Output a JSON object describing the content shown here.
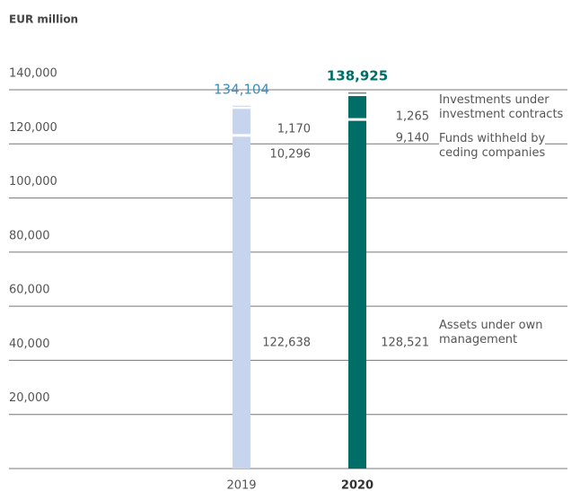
{
  "chart_data": {
    "type": "stacked_bar",
    "y_axis_label": "EUR million",
    "categories": [
      "2019",
      "2020"
    ],
    "category_colors": [
      "#c6d4ee",
      "#006e68"
    ],
    "total_colors": [
      "#3a90c2",
      "#006e68"
    ],
    "totals": [
      134104,
      138925
    ],
    "total_labels": [
      "134,104",
      "138,925"
    ],
    "series": [
      {
        "name": "Assets under own management",
        "values": [
          122638,
          128521
        ],
        "value_labels": [
          "122,638",
          "128,521"
        ]
      },
      {
        "name": "Funds withheld by ceding companies",
        "values": [
          10296,
          9140
        ],
        "value_labels": [
          "10,296",
          "9,140"
        ]
      },
      {
        "name": "Investments under investment contracts",
        "values": [
          1170,
          1265
        ],
        "value_labels": [
          "1,170",
          "1,265"
        ]
      }
    ],
    "ylim": [
      0,
      140000
    ],
    "yticks": [
      {
        "value": 20000,
        "label": "20,000"
      },
      {
        "value": 40000,
        "label": "40,000"
      },
      {
        "value": 60000,
        "label": "60,000"
      },
      {
        "value": 80000,
        "label": "80,000"
      },
      {
        "value": 100000,
        "label": "100,000"
      },
      {
        "value": 120000,
        "label": "120,000"
      },
      {
        "value": 140000,
        "label": "140,000"
      }
    ],
    "grid": true
  }
}
